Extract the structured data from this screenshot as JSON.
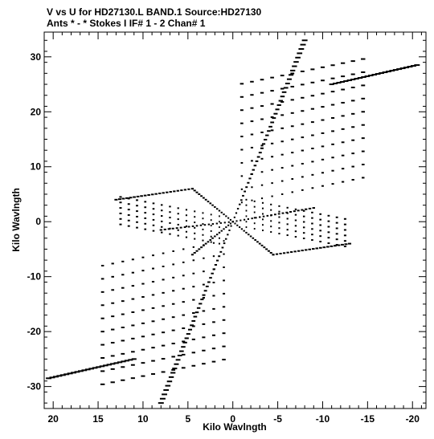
{
  "header": {
    "line1": "V vs U for HD27130.L BAND.1   Source:HD27130",
    "line2": "Ants * - *     Stokes I   IF# 1 - 2   Chan# 1"
  },
  "chart_data": {
    "type": "scatter",
    "title": "V vs U for HD27130.L BAND.1   Source:HD27130",
    "subtitle": "Ants * - *     Stokes I   IF# 1 - 2   Chan# 1",
    "xlabel": "Kilo Wavlngth",
    "ylabel": "Kilo Wavlngth",
    "xlim": [
      21.0,
      -21.5
    ],
    "ylim": [
      -34.0,
      34.5
    ],
    "x_reversed": true,
    "grid": false,
    "marker_color": "#000000",
    "x_ticks": [
      20,
      15,
      10,
      5,
      0,
      -5,
      -10,
      -15,
      -20
    ],
    "y_ticks": [
      30,
      20,
      10,
      0,
      -10,
      -20,
      -30
    ],
    "tick_labels_x": [
      "20",
      "15",
      "10",
      "5",
      "0",
      "-5",
      "-10",
      "-15",
      "-20"
    ],
    "tick_labels_y": [
      "30",
      "20",
      "10",
      "0",
      "-10",
      "-20",
      "-30"
    ],
    "series": [
      {
        "arms": [
          {
            "start": [
              0,
              0
            ],
            "end": [
              -8.0,
              33.0
            ],
            "steps": 14
          },
          {
            "start": [
              0,
              0
            ],
            "end": [
              4.5,
              6.0
            ],
            "steps": 6
          },
          {
            "start": [
              0,
              0
            ],
            "end": [
              4.5,
              -6.0
            ],
            "steps": 6
          },
          {
            "start": [
              0,
              0
            ],
            "end": [
              -4.5,
              -6.0
            ],
            "steps": 6
          },
          {
            "start": [
              0,
              0
            ],
            "end": [
              -9.0,
              2.5
            ],
            "steps": 7
          },
          {
            "start": [
              0,
              0
            ],
            "end": [
              8.0,
              -1.5
            ],
            "steps": 6
          },
          {
            "start": [
              0,
              0
            ],
            "end": [
              8.0,
              -33.0
            ],
            "steps": 14
          },
          {
            "start": [
              -11.0,
              25.0
            ],
            "end": [
              -20.5,
              28.5
            ],
            "steps": 8
          },
          {
            "start": [
              11.0,
              -25.0
            ],
            "end": [
              20.5,
              -28.5
            ],
            "steps": 8
          },
          {
            "start": [
              4.5,
              6.0
            ],
            "end": [
              13.0,
              4.0
            ],
            "steps": 7
          },
          {
            "start": [
              -4.5,
              -6.0
            ],
            "end": [
              -13.0,
              -4.0
            ],
            "steps": 7
          }
        ],
        "tracks": [
          {
            "from": [
              -1.0,
              3.5
            ],
            "to": [
              -14.5,
              8.0
            ],
            "rows": 10,
            "dy": 2.4
          },
          {
            "from": [
              1.0,
              -3.5
            ],
            "to": [
              14.5,
              -8.0
            ],
            "rows": 10,
            "dy": -2.4
          },
          {
            "from": [
              1.5,
              1.0
            ],
            "to": [
              12.5,
              4.5
            ],
            "rows": 6,
            "dy": -1.0
          },
          {
            "from": [
              -1.5,
              -1.0
            ],
            "to": [
              -12.5,
              -4.5
            ],
            "rows": 6,
            "dy": 1.0
          }
        ]
      }
    ]
  }
}
